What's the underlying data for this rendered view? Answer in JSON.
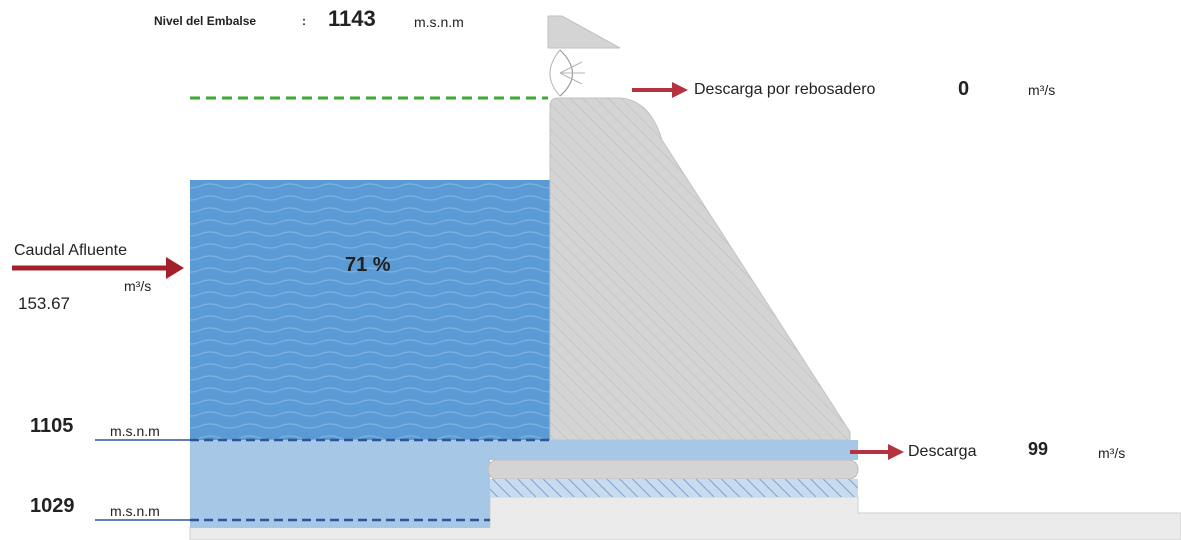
{
  "reservoir_level": {
    "label": "Nivel del Embalse",
    "separator": ":",
    "value": "1143",
    "unit": "m.s.n.m"
  },
  "spillway_discharge": {
    "label": "Descarga por rebosadero",
    "value": "0",
    "unit": "m³/s"
  },
  "inflow": {
    "label": "Caudal Afluente",
    "unit": "m³/s",
    "value": "153.67"
  },
  "fill": {
    "label": "71 %",
    "percent": 71
  },
  "levels": [
    {
      "value": "1105",
      "unit": "m.s.n.m"
    },
    {
      "value": "1029",
      "unit": "m.s.n.m"
    }
  ],
  "discharge": {
    "label": "Descarga",
    "value": "99",
    "unit": "m³/s"
  },
  "colors": {
    "water_upper": "#5b9bd5",
    "water_lower": "#a7c7e7",
    "dam": "#d4d4d4",
    "arrow": "#b5323f",
    "max_level_line": "#3aaa35",
    "level_line": "#2f5597"
  }
}
